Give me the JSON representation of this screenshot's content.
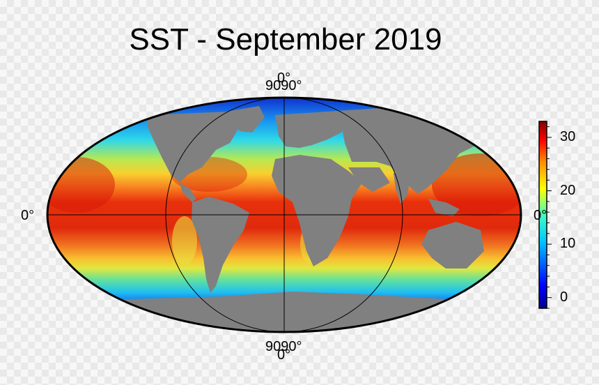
{
  "chart_data": {
    "type": "heatmap",
    "title": "SST - September 2019",
    "projection": "Mollweide (global)",
    "grid": true,
    "land_color": "#808080",
    "colormap": "jet",
    "colorbar": {
      "range": [
        -2,
        33
      ],
      "tick_values": [
        0,
        10,
        20,
        30
      ],
      "tick_labels": [
        "0",
        "10",
        "20",
        "30"
      ],
      "orientation": "vertical",
      "placement": "right"
    },
    "map_labels": {
      "top": "9090°",
      "top_overlap": "0°",
      "bottom": "9090°",
      "bottom_overlap": "0°",
      "left": "0°",
      "right": "0°"
    },
    "field_summary": [
      {
        "region": "tropics",
        "approx_value": 29
      },
      {
        "region": "subtropics",
        "approx_value": 22
      },
      {
        "region": "mid-latitudes",
        "approx_value": 12
      },
      {
        "region": "polar",
        "approx_value": -1
      }
    ]
  },
  "colors": {
    "ocean_warm": "#e8240c",
    "ocean_cold": "#0a10b4",
    "land": "#808080",
    "outline": "#000000"
  }
}
